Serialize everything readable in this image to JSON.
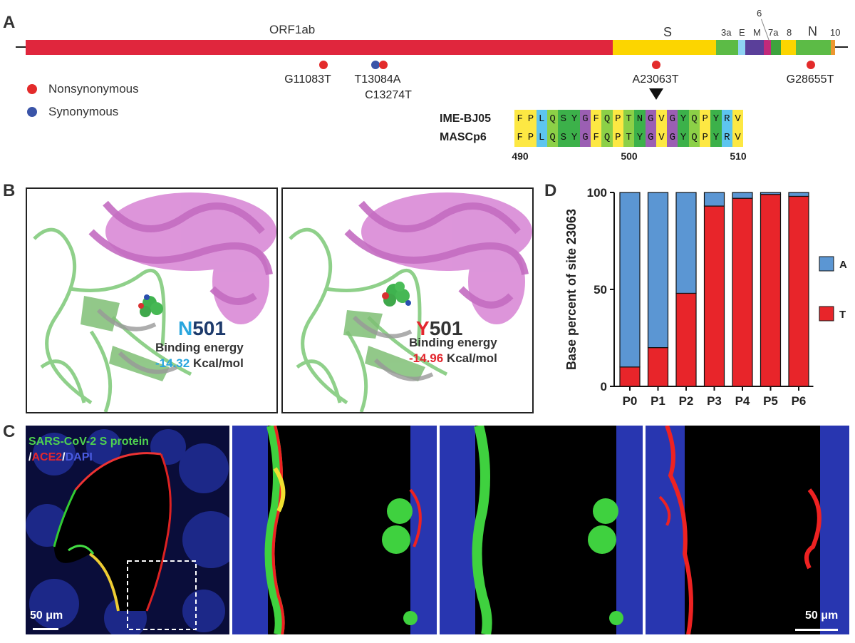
{
  "panels": {
    "a": "A",
    "b": "B",
    "c": "C",
    "d": "D"
  },
  "genome": {
    "genes": [
      {
        "name": "ORF1ab",
        "color": "#e0263d"
      },
      {
        "name": "S",
        "color": "#fcd500"
      },
      {
        "name": "3a",
        "color": "#5cbb46"
      },
      {
        "name": "E",
        "color": "#8fd3f3"
      },
      {
        "name": "M",
        "color": "#5a3f9a"
      },
      {
        "name": "6",
        "color": "#c2297a"
      },
      {
        "name": "7a",
        "color": "#3ea33d"
      },
      {
        "name": "8",
        "color": "#fcd500"
      },
      {
        "name": "N",
        "color": "#5cbb46"
      },
      {
        "name": "10",
        "color": "#ed9730"
      }
    ],
    "mutations": [
      {
        "label": "G11083T",
        "type": "nonsynonymous"
      },
      {
        "label": "T13084A",
        "type": "synonymous"
      },
      {
        "label": "C13274T",
        "type": "nonsynonymous"
      },
      {
        "label": "A23063T",
        "type": "nonsynonymous"
      },
      {
        "label": "G28655T",
        "type": "nonsynonymous"
      }
    ],
    "legend": {
      "nonsynonymous": "Nonsynonymous",
      "synonymous": "Synonymous",
      "nonsyn_color": "#e32b2b",
      "syn_color": "#3a54a8"
    }
  },
  "alignment": {
    "sequences": [
      {
        "name": "IME-BJ05",
        "residues": "FPLQSYGFQPTNGVGYQPYRV"
      },
      {
        "name": "MASCp6",
        "residues": "FPLQSYGFQPTYGVGYQPYRV"
      }
    ],
    "positions": [
      "490",
      "500",
      "510"
    ],
    "colors": {
      "F": "#fde843",
      "P": "#fde843",
      "L": "#5dc5ef",
      "Q": "#8cd047",
      "S": "#3cb14a",
      "Y": "#3cb14a",
      "G": "#9b5fb3",
      "T": "#8cd047",
      "N": "#3cb14a",
      "V": "#fde843",
      "R": "#5dc5ef"
    }
  },
  "structures": [
    {
      "res_letter": "N",
      "res_num": "501",
      "letter_color": "#29a6de",
      "num_color": "#1d3a6b",
      "binding_label": "Binding energy",
      "energy": "-14.32",
      "energy_color": "#29a6de",
      "unit": "Kcal/mol"
    },
    {
      "res_letter": "Y",
      "res_num": "501",
      "letter_color": "#e3262e",
      "num_color": "#333333",
      "binding_label": "Binding energy",
      "energy": "-14.96",
      "energy_color": "#e3262e",
      "unit": "Kcal/mol"
    }
  ],
  "microscopy": {
    "label_green": "SARS-CoV-2 S protein",
    "label_sep1": "/",
    "label_red": "ACE2",
    "label_sep2": "/",
    "label_blue": "DAPI",
    "scale_left": "50 μm",
    "scale_right": "50 μm"
  },
  "chart_data": {
    "type": "bar",
    "stacked": true,
    "categories": [
      "P0",
      "P1",
      "P2",
      "P3",
      "P4",
      "P5",
      "P6"
    ],
    "series": [
      {
        "name": "T",
        "color": "#e8252a",
        "values": [
          10,
          20,
          48,
          93,
          97,
          99,
          98
        ]
      },
      {
        "name": "A",
        "color": "#5b96d3",
        "values": [
          90,
          80,
          52,
          7,
          3,
          1,
          2
        ]
      }
    ],
    "ylabel": "Base percent of site 23063",
    "xlabel": "",
    "ylim": [
      0,
      100
    ],
    "yticks": [
      "0",
      "50",
      "100"
    ],
    "legend_position": "right"
  }
}
